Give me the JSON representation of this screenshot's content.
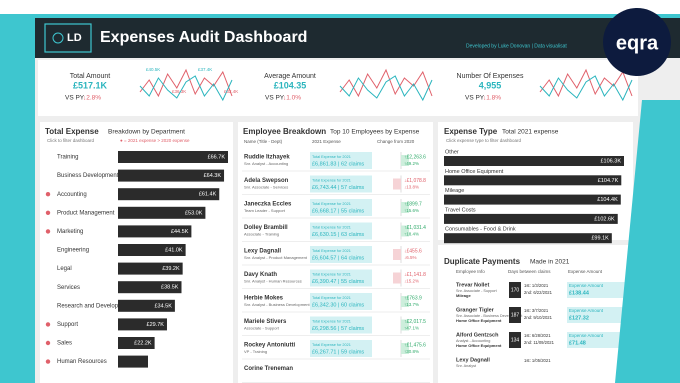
{
  "header": {
    "logo": "LD",
    "title": "Expenses Audit Dashboard",
    "credit": "Developed by Luke Donovan | Data visualisat",
    "brand": "eqra"
  },
  "kpis": [
    {
      "title": "Total Amount",
      "value": "£517.1K",
      "vs": "VS PY",
      "change": "↓2.8%",
      "spark_labels": [
        "£40.5K",
        "£36.3K",
        "£37.4K",
        "£32.4K"
      ]
    },
    {
      "title": "Average Amount",
      "value": "£104.35",
      "vs": "VS PY",
      "change": "↓1.0%"
    },
    {
      "title": "Number Of Expenses",
      "value": "4,955",
      "vs": "VS PY",
      "change": "↓1.8%"
    }
  ],
  "departments": {
    "title": "Total Expense",
    "subtitle": "Breakdown by Department",
    "hint": "Click to filter dashboard",
    "legend": "● = 2021 expense > 2020 expense",
    "color": "#2b2b2b",
    "dot_color": "#e0606a",
    "categories": [
      "Training",
      "Business Development",
      "Accounting",
      "Product Management",
      "Marketing",
      "Engineering",
      "Legal",
      "Services",
      "Research and Development",
      "Support",
      "Sales",
      "Human Resources"
    ],
    "values": [
      66700,
      64300,
      61400,
      53000,
      44500,
      41000,
      39200,
      38500,
      34500,
      29700,
      22200,
      null
    ],
    "value_labels": [
      "£66.7K",
      "£64.3K",
      "£61.4K",
      "£53.0K",
      "£44.5K",
      "£41.0K",
      "£39.2K",
      "£38.5K",
      "£34.5K",
      "£29.7K",
      "£22.2K",
      null
    ],
    "above_prior": [
      false,
      false,
      true,
      true,
      true,
      false,
      false,
      false,
      false,
      true,
      true,
      true
    ]
  },
  "employees": {
    "title": "Employee Breakdown",
    "subtitle": "Top 10 Employees by Expense",
    "columns": [
      "Name (Title - Dept)",
      "2021 Expense",
      "Change from 2020"
    ],
    "expense_caption": "Total Expense for 2021",
    "rows": [
      {
        "name": "Ruddie Itzhayek",
        "role": "Snr. Analyst - Accounting",
        "expense": "£6,861.83 | 62 claims",
        "change": "↑£2,263.6",
        "change_pct": "↑49.2%"
      },
      {
        "name": "Adela Swepson",
        "role": "Snr. Associate - Services",
        "expense": "£6,743.44 | 57 claims",
        "change": "↓£1,078.8",
        "change_pct": "↓13.8%"
      },
      {
        "name": "Janeczka Eccles",
        "role": "Team Leader - Support",
        "expense": "£6,668.17 | 55 claims",
        "change": "↑£899.7",
        "change_pct": "↑15.6%"
      },
      {
        "name": "Dolley Brambill",
        "role": "Associate - Training",
        "expense": "£6,630.15 | 63 claims",
        "change": "↑£1,031.4",
        "change_pct": "↑18.4%"
      },
      {
        "name": "Lexy Dagnall",
        "role": "Snr. Analyst - Product Management",
        "expense": "£6,604.57 | 64 claims",
        "change": "↓£455.6",
        "change_pct": "↓6.5%"
      },
      {
        "name": "Davy Knath",
        "role": "Snr. Analyst - Human Resources",
        "expense": "£6,390.47 | 55 claims",
        "change": "↓£1,141.8",
        "change_pct": "↓15.2%"
      },
      {
        "name": "Herbie Mokes",
        "role": "Snr. Analyst - Business Development",
        "expense": "£6,342.30 | 60 claims",
        "change": "↑£763.9",
        "change_pct": "↑13.7%"
      },
      {
        "name": "Mariele Stivers",
        "role": "Associate - Support",
        "expense": "£6,298.56 | 57 claims",
        "change": "↑£2,017.5",
        "change_pct": "↑47.1%"
      },
      {
        "name": "Rockey Antoniutti",
        "role": "VP - Training",
        "expense": "£6,267.71 | 59 claims",
        "change": "↑£1,475.6",
        "change_pct": "↑30.8%"
      },
      {
        "name": "Corine Treneman"
      }
    ]
  },
  "expense_types": {
    "title": "Expense Type",
    "subtitle": "Total 2021 expense",
    "hint": "Click expense type to filter dashboard",
    "color": "#2b2b2b",
    "categories": [
      "Other",
      "Home Office Equipment",
      "Mileage",
      "Travel Costs",
      "Consumables - Food & Drink"
    ],
    "values": [
      106300,
      104700,
      104400,
      102600,
      99100
    ],
    "value_labels": [
      "£106.3K",
      "£104.7K",
      "£104.4K",
      "£102.6K",
      "£99.1K"
    ]
  },
  "duplicates": {
    "title": "Duplicate Payments",
    "subtitle": "Made in 2021",
    "columns": [
      "Employee Info",
      "Days between claims",
      "Expense Amount"
    ],
    "amount_caption": "Expense Amount",
    "rows": [
      {
        "name": "Trevar Nollet",
        "role": "Snr. Associate - Support",
        "type": "Mileage",
        "days": 170,
        "first": "1st: 1/3/2021",
        "second": "2nd: 6/22/2021",
        "amount": "£138.44"
      },
      {
        "name": "Granger Tigler",
        "role": "Snr. Associate - Business Development",
        "type": "Home Office Equipment",
        "days": 187,
        "first": "1st: 3/7/2021",
        "second": "2nd: 9/10/2021",
        "amount": "£127.32"
      },
      {
        "name": "Alford Gentzsch",
        "role": "Analyst - Accounting",
        "type": "Home Office Equipment",
        "days": 134,
        "first": "1st: 6/28/2021",
        "second": "2nd: 11/09/2021",
        "amount": "£71.48"
      },
      {
        "name": "Lexy Dagnall",
        "role": "Snr. Analyst",
        "first": "1st: 1/05/2021"
      }
    ]
  }
}
